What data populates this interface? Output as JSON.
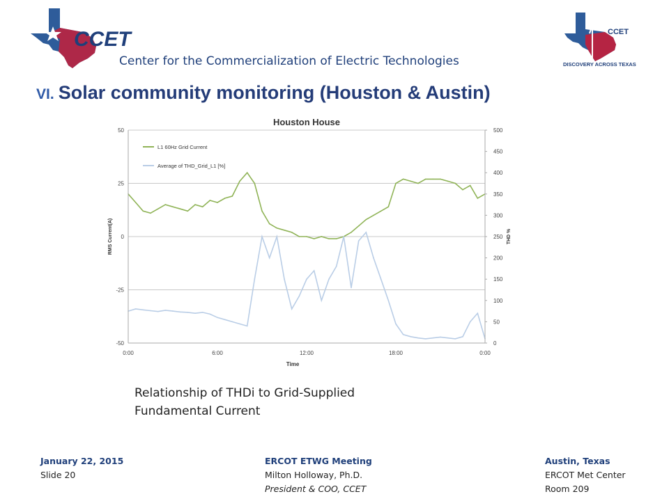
{
  "header": {
    "logo_left_text": "CCET",
    "logo_right_text": "CCET",
    "logo_right_tagline": "DISCOVERY ACROSS TEXAS",
    "org_name": "Center for the Commercialization of Electric Technologies"
  },
  "slide": {
    "title_number": "VI.",
    "title_text": "Solar community monitoring (Houston & Austin)",
    "caption_line1": "Relationship of THDi to Grid-Supplied",
    "caption_line2": "Fundamental Current"
  },
  "chart_data": {
    "type": "line",
    "title": "Houston House",
    "xlabel": "Time",
    "ylabel": "RMS Current(A)",
    "y2label": "THD %",
    "ylim": [
      -50,
      50
    ],
    "y2lim": [
      0,
      500
    ],
    "x_range_hours": [
      0,
      24
    ],
    "x_ticks": [
      "0:00",
      "6:00",
      "12:00",
      "18:00",
      "0:00"
    ],
    "y_ticks": [
      "50",
      "25",
      "0",
      "-25",
      "-50"
    ],
    "y2_ticks": [
      "500",
      "450",
      "400",
      "350",
      "300",
      "250",
      "200",
      "150",
      "100",
      "50",
      "0"
    ],
    "grid": true,
    "legend_position": "top-left",
    "series": [
      {
        "name": "L1 60Hz Grid Current",
        "axis": "left",
        "color": "#8fb356",
        "x": [
          0,
          0.5,
          1,
          1.5,
          2,
          2.5,
          3,
          3.5,
          4,
          4.5,
          5,
          5.5,
          6,
          6.5,
          7,
          7.5,
          8,
          8.5,
          9,
          9.5,
          10,
          10.5,
          11,
          11.5,
          12,
          12.5,
          13,
          13.5,
          14,
          14.5,
          15,
          15.5,
          16,
          16.5,
          17,
          17.5,
          18,
          18.5,
          19,
          19.5,
          20,
          20.5,
          21,
          21.5,
          22,
          22.5,
          23,
          23.5,
          24
        ],
        "y": [
          20,
          16,
          12,
          11,
          13,
          15,
          14,
          13,
          12,
          15,
          14,
          17,
          16,
          18,
          19,
          26,
          30,
          25,
          12,
          6,
          4,
          3,
          2,
          0,
          0,
          -1,
          0,
          -1,
          -1,
          0,
          2,
          5,
          8,
          10,
          12,
          14,
          25,
          27,
          26,
          25,
          27,
          27,
          27,
          26,
          25,
          22,
          24,
          18,
          20
        ]
      },
      {
        "name": "Average of THD_Grid_L1 [%]",
        "axis": "right",
        "color": "#b9cde6",
        "x": [
          0,
          0.5,
          1,
          1.5,
          2,
          2.5,
          3,
          3.5,
          4,
          4.5,
          5,
          5.5,
          6,
          6.5,
          7,
          7.5,
          8,
          8.5,
          9,
          9.5,
          10,
          10.5,
          11,
          11.5,
          12,
          12.5,
          13,
          13.5,
          14,
          14.5,
          15,
          15.5,
          16,
          16.5,
          17,
          17.5,
          18,
          18.5,
          19,
          19.5,
          20,
          20.5,
          21,
          21.5,
          22,
          22.5,
          23,
          23.5,
          24
        ],
        "y": [
          75,
          80,
          78,
          76,
          74,
          77,
          75,
          73,
          72,
          70,
          72,
          68,
          60,
          55,
          50,
          45,
          40,
          150,
          250,
          200,
          250,
          150,
          80,
          110,
          150,
          170,
          100,
          150,
          180,
          250,
          130,
          240,
          260,
          200,
          150,
          100,
          45,
          20,
          15,
          12,
          10,
          12,
          14,
          12,
          10,
          15,
          50,
          70,
          10
        ]
      }
    ]
  },
  "footer": {
    "left_date": "January 22, 2015",
    "left_slide": "Slide 20",
    "center_meeting": "ERCOT ETWG Meeting",
    "center_name": "Milton Holloway, Ph.D.",
    "center_role": "President & COO, CCET",
    "right_city": "Austin, Texas",
    "right_venue": "ERCOT Met Center",
    "right_room": "Room 209"
  },
  "colors": {
    "brand_navy": "#1f3f7a",
    "texas_blue": "#2e5c9a",
    "texas_red": "#c41e3a",
    "green_series": "#8fb356",
    "blue_series": "#b9cde6"
  }
}
